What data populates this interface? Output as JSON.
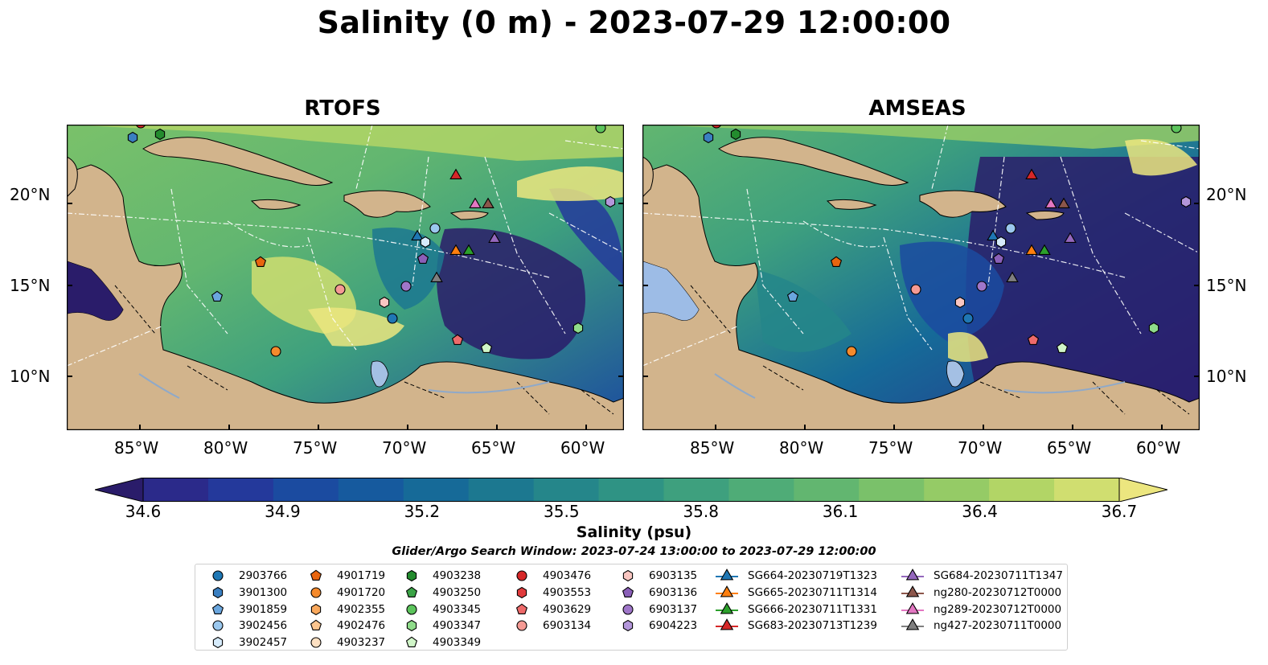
{
  "title": "Salinity (0 m) - 2023-07-29 12:00:00",
  "panels": [
    {
      "title": "RTOFS"
    },
    {
      "title": "AMSEAS"
    }
  ],
  "x_ticks": [
    "85°W",
    "80°W",
    "75°W",
    "70°W",
    "65°W",
    "60°W"
  ],
  "y_ticks": [
    "20°N",
    "15°N",
    "10°N"
  ],
  "colorbar": {
    "ticks": [
      "34.6",
      "34.9",
      "35.2",
      "35.5",
      "35.8",
      "36.1",
      "36.4",
      "36.7"
    ],
    "label": "Salinity (psu)",
    "range": [
      34.6,
      36.7
    ],
    "colors": [
      "#2a1c6a",
      "#2b2a8a",
      "#24399b",
      "#1b4ba0",
      "#165a9e",
      "#166a98",
      "#1c7890",
      "#25868a",
      "#2f9384",
      "#3ea07e",
      "#4fac77",
      "#62b670",
      "#7ac16a",
      "#95cb66",
      "#b2d566",
      "#d0de70",
      "#ece67f"
    ]
  },
  "search_window": "Glider/Argo Search Window: 2023-07-24 13:00:00 to 2023-07-29 12:00:00",
  "legend": {
    "columns": [
      [
        {
          "label": "2903766",
          "marker": "circle",
          "color": "#1f77b4"
        },
        {
          "label": "3901300",
          "marker": "hexagon",
          "color": "#3a7fc1"
        },
        {
          "label": "3901859",
          "marker": "pentagon",
          "color": "#6aa6de"
        },
        {
          "label": "3902456",
          "marker": "circle",
          "color": "#9bc8ee"
        },
        {
          "label": "3902457",
          "marker": "hexagon",
          "color": "#d6ebfb"
        }
      ],
      [
        {
          "label": "4901719",
          "marker": "pentagon",
          "color": "#e8650f"
        },
        {
          "label": "4901720",
          "marker": "circle",
          "color": "#f58a2c"
        },
        {
          "label": "4902355",
          "marker": "hexagon",
          "color": "#f9a85c"
        },
        {
          "label": "4902476",
          "marker": "pentagon",
          "color": "#fbc58f"
        },
        {
          "label": "4903237",
          "marker": "circle",
          "color": "#fde0c2"
        }
      ],
      [
        {
          "label": "4903238",
          "marker": "hexagon",
          "color": "#238b2e"
        },
        {
          "label": "4903250",
          "marker": "pentagon",
          "color": "#3aa346"
        },
        {
          "label": "4903345",
          "marker": "circle",
          "color": "#5cc45c"
        },
        {
          "label": "4903347",
          "marker": "hexagon",
          "color": "#8fdc8a"
        },
        {
          "label": "4903349",
          "marker": "pentagon",
          "color": "#d0f5c8"
        }
      ],
      [
        {
          "label": "4903476",
          "marker": "circle",
          "color": "#d62728"
        },
        {
          "label": "4903553",
          "marker": "hexagon",
          "color": "#e03b3c"
        },
        {
          "label": "4903629",
          "marker": "pentagon",
          "color": "#ee6a6a"
        },
        {
          "label": "6903134",
          "marker": "circle",
          "color": "#f59a94"
        }
      ],
      [
        {
          "label": "6903135",
          "marker": "hexagon",
          "color": "#f9c6c1"
        },
        {
          "label": "6903136",
          "marker": "pentagon",
          "color": "#8a5fb8"
        },
        {
          "label": "6903137",
          "marker": "circle",
          "color": "#9f76c9"
        },
        {
          "label": "6904223",
          "marker": "hexagon",
          "color": "#b497db"
        }
      ],
      [
        {
          "label": "SG664-20230719T1323",
          "marker": "triangle",
          "color": "#1f77b4"
        },
        {
          "label": "SG665-20230711T1314",
          "marker": "triangle",
          "color": "#ff7f0e"
        },
        {
          "label": "SG666-20230711T1331",
          "marker": "triangle",
          "color": "#2ca02c"
        },
        {
          "label": "SG683-20230713T1239",
          "marker": "triangle",
          "color": "#d62728"
        }
      ],
      [
        {
          "label": "SG684-20230711T1347",
          "marker": "triangle",
          "color": "#9467bd"
        },
        {
          "label": "ng280-20230712T0000",
          "marker": "triangle",
          "color": "#8c564b"
        },
        {
          "label": "ng289-20230712T0000",
          "marker": "triangle",
          "color": "#e377c2"
        },
        {
          "label": "ng427-20230711T0000",
          "marker": "triangle",
          "color": "#7f7f7f"
        }
      ]
    ]
  },
  "map_colors": {
    "land": "#d2b48c",
    "lake": "#a4c0e4",
    "low_salinity": "#2a1c6a",
    "mid_salinity": "#2f9384",
    "high_salinity": "#62b670",
    "fresh_plume": "#ece67f"
  }
}
